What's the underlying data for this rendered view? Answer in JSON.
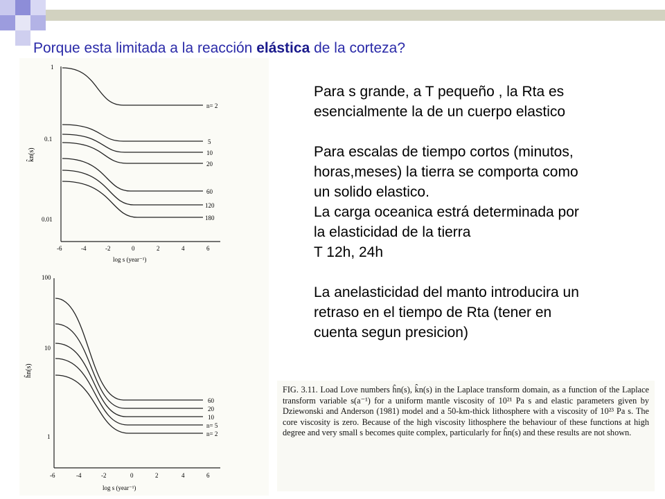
{
  "title": {
    "before": "Porque esta limitada a la reacción ",
    "bold": "elástica",
    "after": " de la corteza?"
  },
  "paragraphs": [
    [
      "Para s grande, a T pequeño , la Rta es",
      "esencialmente la de un cuerpo elastico"
    ],
    [
      "Para escalas de tiempo cortos (minutos,",
      "horas,meses) la tierra se comporta como",
      "un solido elastico.",
      "La carga oceanica estrá determinada por",
      "la elasticidad de la tierra",
      "T 12h, 24h"
    ],
    [
      "La anelasticidad del manto introducira un",
      "retraso en el tiempo de Rta (tener en",
      "cuenta segun presicion)"
    ]
  ],
  "plot_top": {
    "ylabel": "k̂n(s)",
    "xlabel": "log s   (year⁻¹)",
    "yticks": [
      "1",
      "0.1",
      "0.01"
    ],
    "xticks": [
      "-6",
      "-4",
      "-2",
      "0",
      "2",
      "4",
      "6"
    ],
    "curve_labels": [
      "n= 2",
      "5",
      "10",
      "20",
      "60",
      "120",
      "180"
    ]
  },
  "plot_bottom": {
    "ylabel": "ĥn(s)",
    "xlabel": "log s  (year⁻¹)",
    "yticks": [
      "100",
      "10",
      "1"
    ],
    "xticks": [
      "-6",
      "-4",
      "-2",
      "0",
      "2",
      "4",
      "6"
    ],
    "curve_labels": [
      "60",
      "20",
      "10",
      "n= 5",
      "n= 2"
    ]
  },
  "caption": "FIG. 3.11. Load Love numbers ĥn(s), k̂n(s) in the Laplace transform domain, as a function of the Laplace transform variable s(a⁻¹) for a uniform mantle viscosity of 10²¹ Pa s and elastic parameters given by Dziewonski and Anderson (1981) model and a 50-km-thick lithosphere with a viscosity of 10²³ Pa s. The core viscosity is zero. Because of the high viscosity lithosphere the behaviour of these functions at high degree and very small s becomes quite complex, particularly for ĥn(s) and these results are not shown."
}
